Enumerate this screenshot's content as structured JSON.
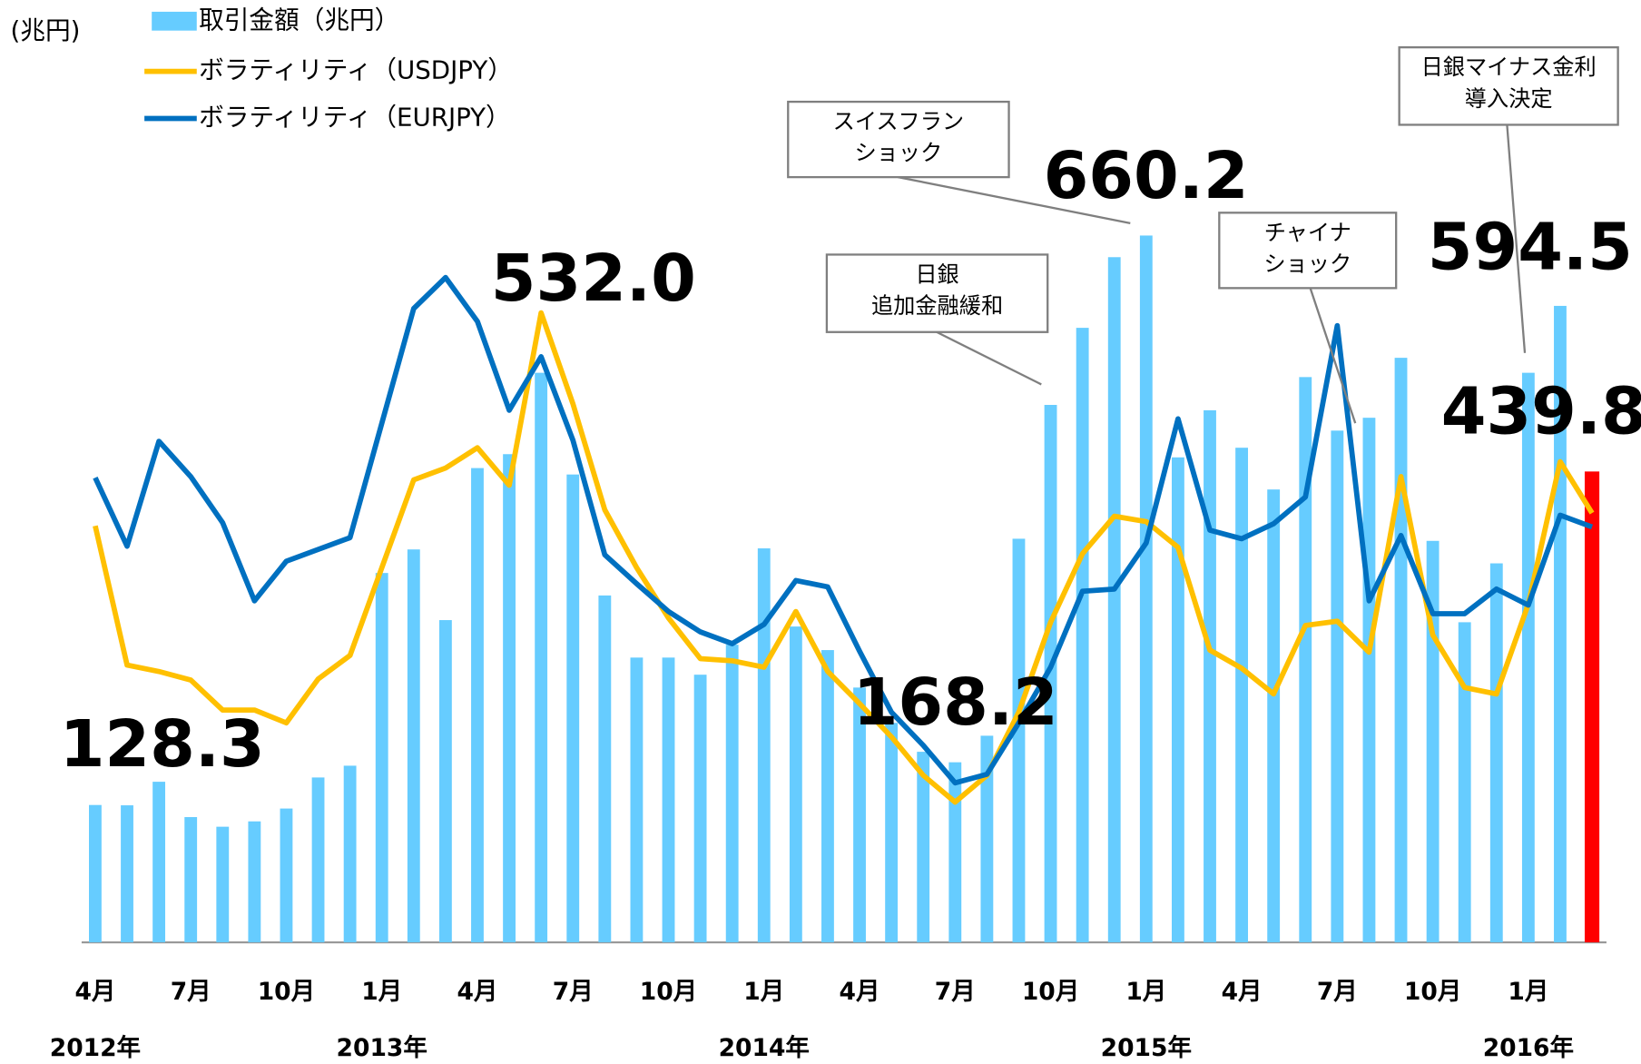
{
  "chart_data": {
    "type": "bar_line",
    "y_label": "(兆円)",
    "ylim": [
      0,
      880
    ],
    "categories": [
      "4月",
      null,
      null,
      "7月",
      null,
      null,
      "10月",
      null,
      null,
      "1月",
      null,
      null,
      "4月",
      null,
      null,
      "7月",
      null,
      null,
      "10月",
      null,
      null,
      "1月",
      null,
      null,
      "4月",
      null,
      null,
      "7月",
      null,
      null,
      "10月",
      null,
      null,
      "1月",
      null,
      null,
      "4月",
      null,
      null,
      "7月",
      null,
      null,
      "10月",
      null,
      null,
      "1月",
      null,
      null
    ],
    "years": [
      "2012年",
      null,
      null,
      null,
      null,
      null,
      null,
      null,
      null,
      "2013年",
      null,
      null,
      null,
      null,
      null,
      null,
      null,
      null,
      null,
      null,
      null,
      "2014年",
      null,
      null,
      null,
      null,
      null,
      null,
      null,
      null,
      null,
      null,
      null,
      "2015年",
      null,
      null,
      null,
      null,
      null,
      null,
      null,
      null,
      null,
      null,
      null,
      "2016年",
      null,
      null
    ],
    "series": [
      {
        "name": "取引金額（兆円）",
        "type": "bar",
        "color": "#66ccff",
        "colors": [
          "#66ccff",
          "#66ccff",
          "#66ccff",
          "#66ccff",
          "#66ccff",
          "#66ccff",
          "#66ccff",
          "#66ccff",
          "#66ccff",
          "#66ccff",
          "#66ccff",
          "#66ccff",
          "#66ccff",
          "#66ccff",
          "#66ccff",
          "#66ccff",
          "#66ccff",
          "#66ccff",
          "#66ccff",
          "#66ccff",
          "#66ccff",
          "#66ccff",
          "#66ccff",
          "#66ccff",
          "#66ccff",
          "#66ccff",
          "#66ccff",
          "#66ccff",
          "#66ccff",
          "#66ccff",
          "#66ccff",
          "#66ccff",
          "#66ccff",
          "#66ccff",
          "#66ccff",
          "#66ccff",
          "#66ccff",
          "#66ccff",
          "#66ccff",
          "#66ccff",
          "#66ccff",
          "#66ccff",
          "#66ccff",
          "#66ccff",
          "#66ccff",
          "#66ccff",
          "#66ccff",
          "#ff0000"
        ],
        "values": [
          128.3,
          128,
          150,
          117,
          108,
          113,
          125,
          154,
          165,
          345,
          367,
          301,
          443,
          456,
          532.0,
          437,
          324,
          266,
          266,
          250,
          278,
          368,
          295,
          273,
          238,
          205,
          178,
          168.2,
          193,
          377,
          502,
          574,
          640,
          660.2,
          453,
          497,
          462,
          423,
          528,
          478,
          490,
          546,
          375,
          299,
          354,
          532,
          594.5,
          439.8
        ],
        "value_labels": [
          "128.3",
          null,
          null,
          null,
          null,
          null,
          null,
          null,
          null,
          null,
          null,
          null,
          null,
          null,
          "532.0",
          null,
          null,
          null,
          null,
          null,
          null,
          null,
          null,
          null,
          null,
          null,
          null,
          "168.2",
          null,
          null,
          null,
          null,
          null,
          "660.2",
          null,
          null,
          null,
          null,
          null,
          null,
          null,
          null,
          null,
          null,
          null,
          null,
          "594.5",
          "439.8"
        ]
      },
      {
        "name": "ボラティリティ（USDJPY）",
        "type": "line",
        "color": "#ffc000",
        "values": [
          389,
          259,
          253,
          245,
          217,
          217,
          205,
          246,
          268,
          350,
          432,
          443,
          462,
          427,
          588,
          503,
          404,
          350,
          303,
          265,
          263,
          257,
          309,
          253,
          223,
          192,
          156,
          131,
          156,
          215,
          299,
          363,
          398,
          393,
          369,
          273,
          256,
          232,
          296,
          300,
          271,
          435,
          287,
          238,
          232,
          316,
          449,
          401
        ]
      },
      {
        "name": "ボラティリティ（EURJPY）",
        "type": "line",
        "color": "#0070c0",
        "values": [
          434,
          370,
          468,
          435,
          392,
          319,
          356,
          367,
          378,
          485,
          592,
          621,
          580,
          497,
          547,
          469,
          362,
          335,
          309,
          290,
          279,
          297,
          338,
          332,
          272,
          215,
          184,
          149,
          157,
          205,
          257,
          328,
          330,
          373,
          489,
          385,
          377,
          391,
          416,
          576,
          319,
          380,
          307,
          307,
          330,
          315,
          399,
          388
        ]
      }
    ],
    "annotations": [
      {
        "lines": [
          "スイスフラン",
          "ショック"
        ]
      },
      {
        "lines": [
          "日銀",
          "追加金融緩和"
        ]
      },
      {
        "lines": [
          "チャイナ",
          "ショック"
        ]
      },
      {
        "lines": [
          "日銀マイナス金利",
          "導入決定"
        ]
      }
    ]
  }
}
